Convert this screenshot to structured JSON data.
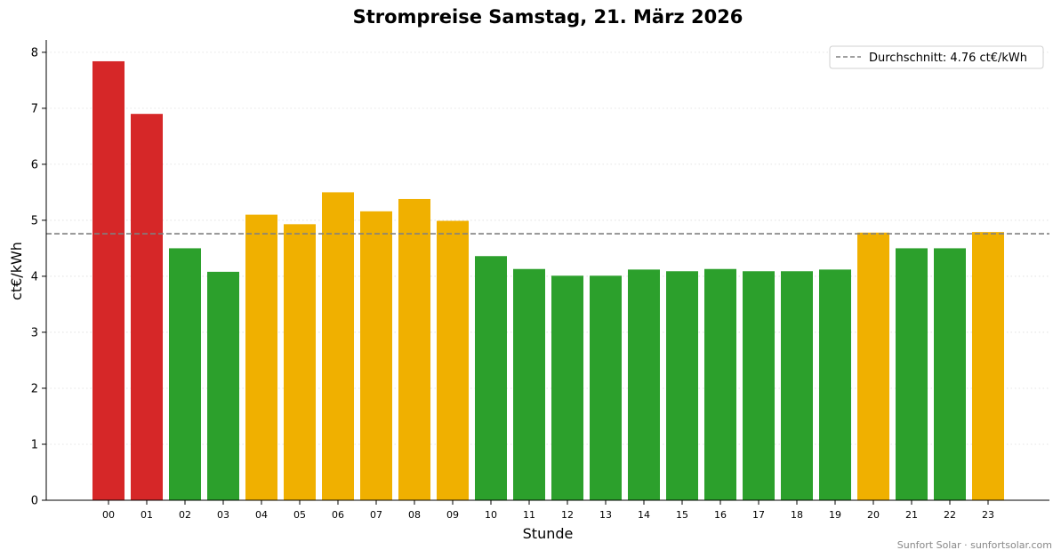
{
  "chart_data": {
    "type": "bar",
    "title": "Strompreise Samstag, 21. März 2026",
    "xlabel": "Stunde",
    "ylabel": "ct€/kWh",
    "categories": [
      "00",
      "01",
      "02",
      "03",
      "04",
      "05",
      "06",
      "07",
      "08",
      "09",
      "10",
      "11",
      "12",
      "13",
      "14",
      "15",
      "16",
      "17",
      "18",
      "19",
      "20",
      "21",
      "22",
      "23"
    ],
    "values": [
      7.84,
      6.9,
      4.5,
      4.08,
      5.1,
      4.93,
      5.5,
      5.16,
      5.38,
      4.99,
      4.36,
      4.13,
      4.01,
      4.01,
      4.12,
      4.09,
      4.13,
      4.09,
      4.09,
      4.12,
      4.78,
      4.5,
      4.5,
      4.79
    ],
    "bar_colors": [
      "#d62728",
      "#d62728",
      "#2ca02c",
      "#2ca02c",
      "#f0b000",
      "#f0b000",
      "#f0b000",
      "#f0b000",
      "#f0b000",
      "#f0b000",
      "#2ca02c",
      "#2ca02c",
      "#2ca02c",
      "#2ca02c",
      "#2ca02c",
      "#2ca02c",
      "#2ca02c",
      "#2ca02c",
      "#2ca02c",
      "#2ca02c",
      "#f0b000",
      "#2ca02c",
      "#2ca02c",
      "#f0b000"
    ],
    "average": {
      "value": 4.76,
      "label": "Durchschnitt: 4.76 ct€/kWh",
      "color": "#808080"
    },
    "ylim": [
      0,
      8.22
    ],
    "yticks": [
      0,
      1,
      2,
      3,
      4,
      5,
      6,
      7,
      8
    ],
    "grid": "y-dotted",
    "legend": "top-right"
  },
  "footer": "Sunfort Solar · sunfortsolar.com"
}
